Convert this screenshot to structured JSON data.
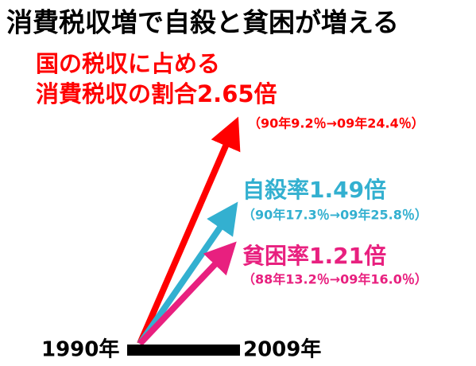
{
  "header": {
    "title": "消費税収増で自殺と貧困が増える"
  },
  "items": [
    {
      "label_lines": [
        "国の税収に占める",
        "消費税収の割合2.65倍"
      ],
      "detail": "（90年9.2％→09年24.4％）"
    },
    {
      "label_lines": [
        "自殺率1.49倍"
      ],
      "detail": "（90年17.3％→09年25.8％）"
    },
    {
      "label_lines": [
        "貧困率1.21倍"
      ],
      "detail": "（88年13.2％→09年16.0％）"
    }
  ],
  "timeline": {
    "start": "1990年",
    "end": "2009年"
  }
}
